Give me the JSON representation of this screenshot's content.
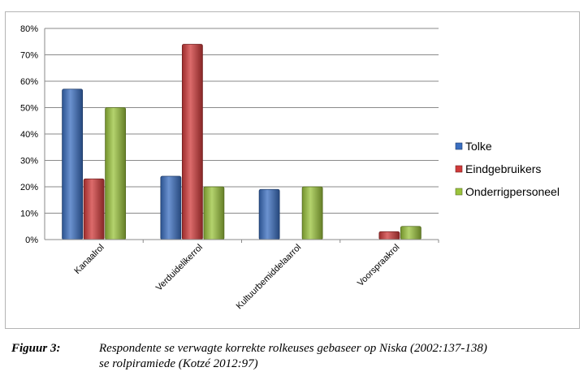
{
  "chart_data": {
    "type": "bar",
    "categories": [
      "Kanaalrol",
      "Verduidelikerrol",
      "Kultuurbemiddelaarrol",
      "Voorspraakrol"
    ],
    "series": [
      {
        "name": "Tolke",
        "values": [
          57,
          24,
          19,
          0
        ],
        "color": "#3a6ec0"
      },
      {
        "name": "Eindgebruikers",
        "values": [
          23,
          74,
          0,
          3
        ],
        "color": "#d03a3a"
      },
      {
        "name": "Onderrigpersoneel",
        "values": [
          50,
          20,
          20,
          5
        ],
        "color": "#9bc43c"
      }
    ],
    "ylim": [
      0,
      80
    ],
    "yticks": [
      "0%",
      "10%",
      "20%",
      "30%",
      "40%",
      "50%",
      "60%",
      "70%",
      "80%"
    ],
    "grid": true,
    "legend": "right",
    "title": "",
    "xlabel": "",
    "ylabel": ""
  },
  "caption": {
    "label": "Figuur 3:",
    "line1": "Respondente se verwagte korrekte rolkeuses gebaseer op Niska (2002:137-138)",
    "line2": "se rolpiramiede (Kotzé 2012:97)"
  }
}
